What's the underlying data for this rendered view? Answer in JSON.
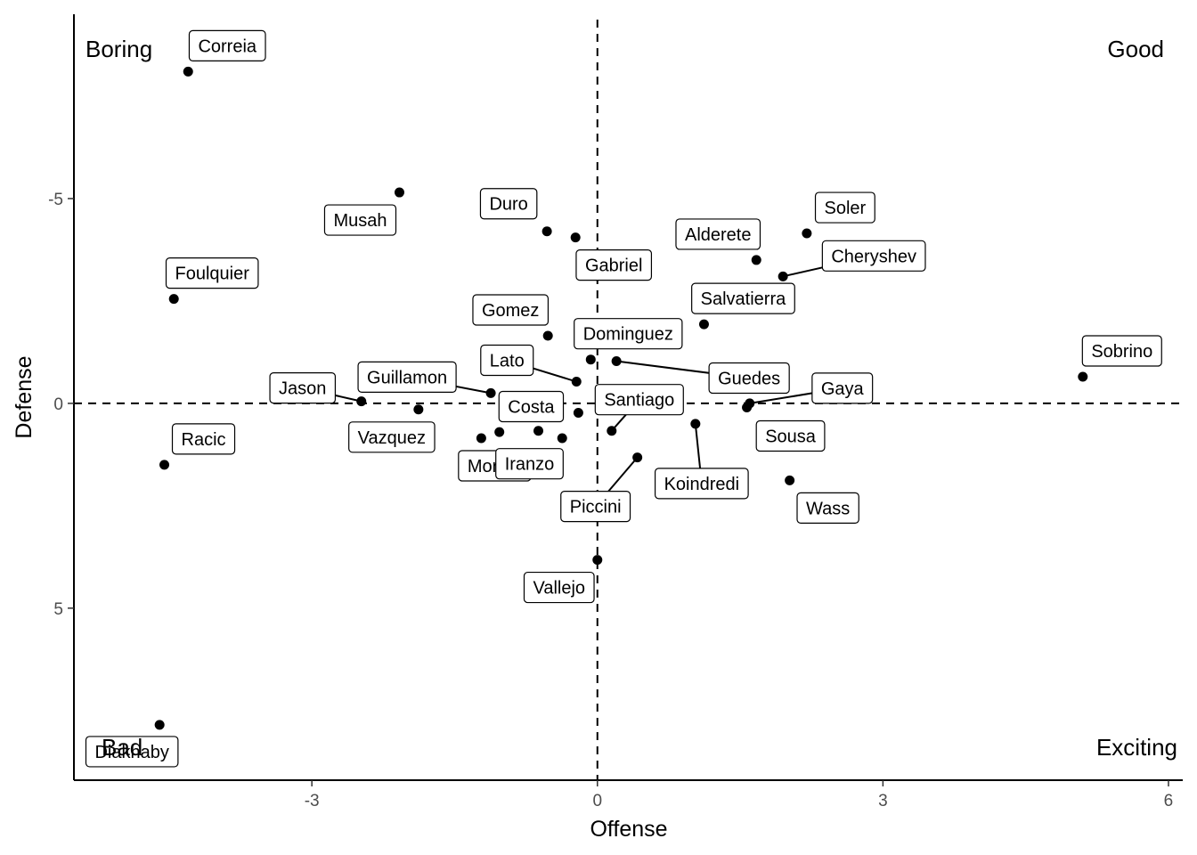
{
  "chart_data": {
    "type": "scatter",
    "xlabel": "Offense",
    "ylabel": "Defense",
    "xlim": [
      -5.5,
      6.15
    ],
    "ylim": [
      9.2,
      -9.5
    ],
    "y_reversed": true,
    "x_ticks": [
      -3,
      0,
      3,
      6
    ],
    "y_ticks": [
      -5,
      0,
      5
    ],
    "ref_x": 0,
    "ref_y": 0,
    "grid": false,
    "quadrant_labels": {
      "top_left": "Boring",
      "top_right": "Good",
      "bottom_left": "Bad",
      "bottom_right": "Exciting"
    },
    "points": [
      {
        "name": "Correia",
        "x": -4.3,
        "y": -8.1
      },
      {
        "name": "Musah",
        "x": -2.08,
        "y": -5.15
      },
      {
        "name": "Duro",
        "x": -0.53,
        "y": -4.2
      },
      {
        "name": "Gabriel",
        "x": -0.23,
        "y": -4.05
      },
      {
        "name": "Alderete",
        "x": 1.67,
        "y": -3.5
      },
      {
        "name": "Soler",
        "x": 2.2,
        "y": -4.15
      },
      {
        "name": "Cheryshev",
        "x": 1.95,
        "y": -3.1
      },
      {
        "name": "Foulquier",
        "x": -4.45,
        "y": -2.55
      },
      {
        "name": "Salvatierra",
        "x": 1.12,
        "y": -1.93
      },
      {
        "name": "Gomez",
        "x": -0.52,
        "y": -1.65
      },
      {
        "name": "Dominguez",
        "x": -0.07,
        "y": -1.07
      },
      {
        "name": "Guedes",
        "x": 0.2,
        "y": -1.03
      },
      {
        "name": "Sobrino",
        "x": 5.1,
        "y": -0.65
      },
      {
        "name": "Lato",
        "x": -0.22,
        "y": -0.53
      },
      {
        "name": "Guillamon",
        "x": -1.12,
        "y": -0.25
      },
      {
        "name": "Jason",
        "x": -2.48,
        "y": -0.05
      },
      {
        "name": "Gaya",
        "x": 1.6,
        "y": 0.0
      },
      {
        "name": "Sousa",
        "x": 1.57,
        "y": 0.1
      },
      {
        "name": "Vazquez",
        "x": -1.88,
        "y": 0.15
      },
      {
        "name": "Costa",
        "x": -0.2,
        "y": 0.23
      },
      {
        "name": "Santiago",
        "x": 0.15,
        "y": 0.67
      },
      {
        "name": "Koindredi",
        "x": 1.03,
        "y": 0.5
      },
      {
        "name": "Moriba",
        "x": -1.22,
        "y": 0.85
      },
      {
        "name": "Moriba2",
        "x": -1.03,
        "y": 0.7
      },
      {
        "name": "Iranzo",
        "x": -0.62,
        "y": 0.67
      },
      {
        "name": "Iranzo2",
        "x": -0.37,
        "y": 0.85
      },
      {
        "name": "Piccini",
        "x": 0.42,
        "y": 1.32
      },
      {
        "name": "Wass",
        "x": 2.02,
        "y": 1.88
      },
      {
        "name": "Racic",
        "x": -4.55,
        "y": 1.5
      },
      {
        "name": "Vallejo",
        "x": 0.0,
        "y": 3.82
      },
      {
        "name": "Diakhaby",
        "x": -4.6,
        "y": 7.85
      }
    ],
    "labels": [
      {
        "text": "Correia",
        "point": 0
      },
      {
        "text": "Musah",
        "point": 1
      },
      {
        "text": "Duro",
        "point": 2
      },
      {
        "text": "Gabriel",
        "point": 3
      },
      {
        "text": "Alderete",
        "point": 4
      },
      {
        "text": "Soler",
        "point": 5
      },
      {
        "text": "Cheryshev",
        "point": 6
      },
      {
        "text": "Foulquier",
        "point": 7
      },
      {
        "text": "Salvatierra",
        "point": 8
      },
      {
        "text": "Gomez",
        "point": 9
      },
      {
        "text": "Dominguez",
        "point": 10
      },
      {
        "text": "Guedes",
        "point": 11
      },
      {
        "text": "Sobrino",
        "point": 12
      },
      {
        "text": "Lato",
        "point": 13
      },
      {
        "text": "Guillamon",
        "point": 14
      },
      {
        "text": "Jason",
        "point": 15
      },
      {
        "text": "Gaya",
        "point": 16
      },
      {
        "text": "Sousa",
        "point": 17
      },
      {
        "text": "Vazquez",
        "point": 18
      },
      {
        "text": "Costa",
        "point": 19
      },
      {
        "text": "Santiago",
        "point": 20
      },
      {
        "text": "Koindredi",
        "point": 21
      },
      {
        "text": "Moriba",
        "point": 22
      },
      {
        "text": "Iranzo",
        "point": 24
      },
      {
        "text": "Piccini",
        "point": 26
      },
      {
        "text": "Wass",
        "point": 27
      },
      {
        "text": "Racic",
        "point": 28
      },
      {
        "text": "Vallejo",
        "point": 29
      },
      {
        "text": "Diakhaby",
        "point": 30
      }
    ]
  }
}
